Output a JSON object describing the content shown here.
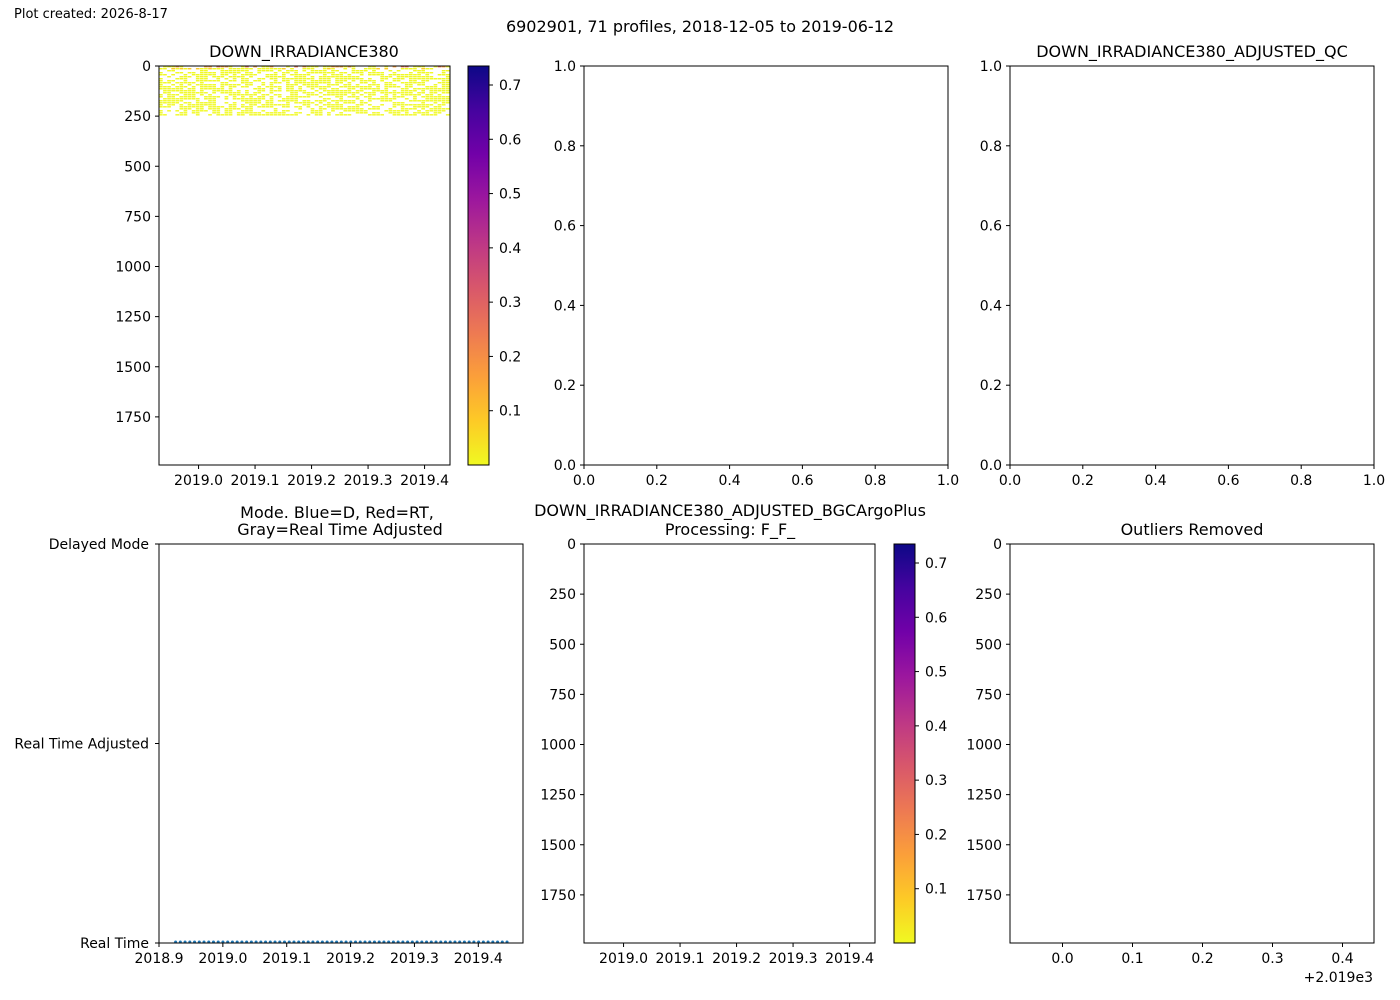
{
  "header": {
    "created": "Plot created: 2026-8-17",
    "suptitle": "6902901, 71 profiles, 2018-12-05 to 2019-06-12"
  },
  "colors": {
    "mode_line": "#1f77b4",
    "plasma": [
      "#f0f921",
      "#fdca26",
      "#fb9f3a",
      "#ed7953",
      "#d8576b",
      "#bd3786",
      "#9c179e",
      "#7201a8",
      "#46039f",
      "#0d0887"
    ]
  },
  "chart_data": [
    {
      "id": "p1",
      "type": "heatmap",
      "title": "DOWN_IRRADIANCE380",
      "xlim": [
        2018.93,
        2019.445
      ],
      "ylim": [
        1990,
        0
      ],
      "xticks": [
        "2019.0",
        "2019.1",
        "2019.2",
        "2019.3",
        "2019.4"
      ],
      "xtick_values": [
        2019.0,
        2019.1,
        2019.2,
        2019.3,
        2019.4
      ],
      "yticks": [
        "0",
        "250",
        "500",
        "750",
        "1000",
        "1250",
        "1500",
        "1750"
      ],
      "ytick_values": [
        0,
        250,
        500,
        750,
        1000,
        1250,
        1500,
        1750
      ],
      "data_extent": {
        "x": [
          2018.93,
          2019.445
        ],
        "depth": [
          0,
          250
        ]
      },
      "data_summary": "71 profiles; values mostly 0 to 0.05 between 0 and 250 dbar, up to about 0.3 at the surface",
      "colorbar": {
        "cmap": "plasma_r",
        "range": [
          0.0,
          0.735
        ],
        "ticks": [
          "0.1",
          "0.2",
          "0.3",
          "0.4",
          "0.5",
          "0.6",
          "0.7"
        ],
        "tick_values": [
          0.1,
          0.2,
          0.3,
          0.4,
          0.5,
          0.6,
          0.7
        ]
      }
    },
    {
      "id": "p2",
      "type": "scatter",
      "title": "",
      "xlim": [
        0,
        1
      ],
      "ylim": [
        0,
        1
      ],
      "xticks": [
        "0.0",
        "0.2",
        "0.4",
        "0.6",
        "0.8",
        "1.0"
      ],
      "yticks": [
        "0.0",
        "0.2",
        "0.4",
        "0.6",
        "0.8",
        "1.0"
      ],
      "series": []
    },
    {
      "id": "p3",
      "type": "scatter",
      "title": "DOWN_IRRADIANCE380_ADJUSTED_QC",
      "xlim": [
        0,
        1
      ],
      "ylim": [
        0,
        1
      ],
      "xticks": [
        "0.0",
        "0.2",
        "0.4",
        "0.6",
        "0.8",
        "1.0"
      ],
      "yticks": [
        "0.0",
        "0.2",
        "0.4",
        "0.6",
        "0.8",
        "1.0"
      ],
      "series": []
    },
    {
      "id": "p4",
      "type": "scatter",
      "title_lines": [
        "Mode. Blue=D, Red=RT,",
        "Gray=Real Time Adjusted"
      ],
      "xlim": [
        2018.9,
        2019.47
      ],
      "xticks": [
        "2018.9",
        "2019.0",
        "2019.1",
        "2019.2",
        "2019.3",
        "2019.4"
      ],
      "xtick_values": [
        2018.9,
        2019.0,
        2019.1,
        2019.2,
        2019.3,
        2019.4
      ],
      "yticks": [
        "Delayed Mode",
        "Real Time Adjusted",
        "Real Time"
      ],
      "series": [
        {
          "category": "Real Time",
          "x_range": [
            2018.926,
            2019.445
          ],
          "count": 71
        }
      ]
    },
    {
      "id": "p5",
      "type": "heatmap",
      "title_lines": [
        "DOWN_IRRADIANCE380_ADJUSTED_BGCArgoPlus",
        "Processing: F_F_"
      ],
      "xlim": [
        2018.93,
        2019.445
      ],
      "ylim": [
        1990,
        0
      ],
      "xticks": [
        "2019.0",
        "2019.1",
        "2019.2",
        "2019.3",
        "2019.4"
      ],
      "xtick_values": [
        2019.0,
        2019.1,
        2019.2,
        2019.3,
        2019.4
      ],
      "yticks": [
        "0",
        "250",
        "500",
        "750",
        "1000",
        "1250",
        "1500",
        "1750"
      ],
      "ytick_values": [
        0,
        250,
        500,
        750,
        1000,
        1250,
        1500,
        1750
      ],
      "colorbar": {
        "cmap": "plasma_r",
        "range": [
          0.0,
          0.735
        ],
        "ticks": [
          "0.1",
          "0.2",
          "0.3",
          "0.4",
          "0.5",
          "0.6",
          "0.7"
        ],
        "tick_values": [
          0.1,
          0.2,
          0.3,
          0.4,
          0.5,
          0.6,
          0.7
        ]
      }
    },
    {
      "id": "p6",
      "type": "scatter",
      "title": "Outliers Removed",
      "xlim": [
        -0.075,
        0.445
      ],
      "ylim": [
        1990,
        0
      ],
      "xticks": [
        "0.0",
        "0.1",
        "0.2",
        "0.3",
        "0.4"
      ],
      "xtick_values": [
        0.0,
        0.1,
        0.2,
        0.3,
        0.4
      ],
      "yticks": [
        "0",
        "250",
        "500",
        "750",
        "1000",
        "1250",
        "1500",
        "1750"
      ],
      "ytick_values": [
        0,
        250,
        500,
        750,
        1000,
        1250,
        1500,
        1750
      ],
      "offset_label": "+2.019e3",
      "series": []
    }
  ]
}
